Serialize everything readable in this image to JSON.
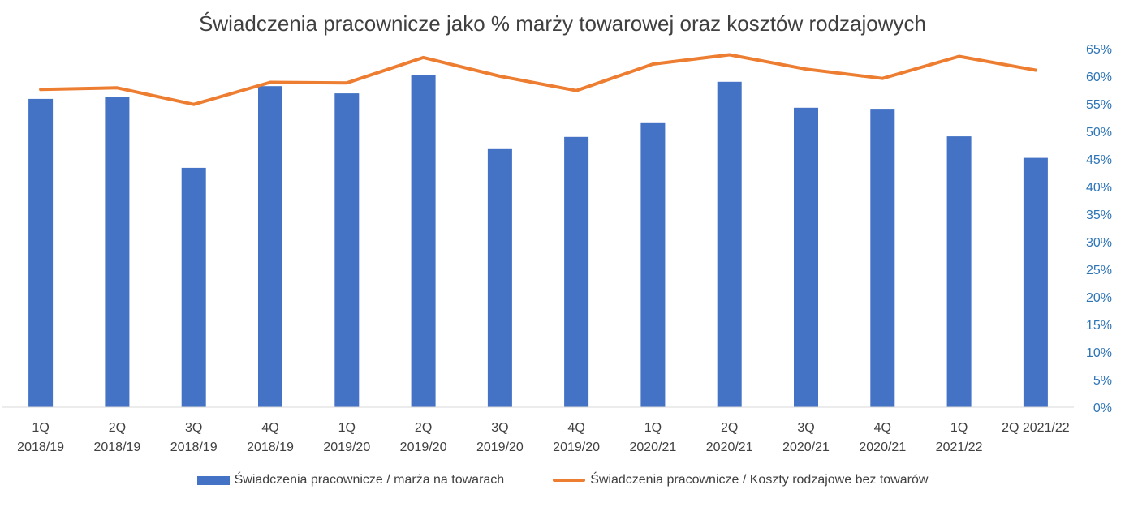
{
  "chart_data": {
    "type": "bar",
    "title": "Świadczenia pracownicze jako % marży towarowej oraz kosztów rodzajowych",
    "categories": [
      [
        "1Q",
        "2018/19"
      ],
      [
        "2Q",
        "2018/19"
      ],
      [
        "3Q",
        "2018/19"
      ],
      [
        "4Q",
        "2018/19"
      ],
      [
        "1Q",
        "2019/20"
      ],
      [
        "2Q",
        "2019/20"
      ],
      [
        "3Q",
        "2019/20"
      ],
      [
        "4Q",
        "2019/20"
      ],
      [
        "1Q",
        "2020/21"
      ],
      [
        "2Q",
        "2020/21"
      ],
      [
        "3Q",
        "2020/21"
      ],
      [
        "4Q",
        "2020/21"
      ],
      [
        "1Q",
        "2021/22"
      ],
      [
        "2Q 2021/22"
      ]
    ],
    "series": [
      {
        "name": "Świadczenia pracownicze / marża na towarach",
        "type": "bar",
        "color": "#4472c4",
        "values": [
          55.9,
          56.3,
          43.4,
          58.2,
          56.9,
          60.2,
          46.8,
          49.0,
          51.5,
          59.0,
          54.3,
          54.1,
          49.1,
          45.2
        ]
      },
      {
        "name": "Świadczenia pracownicze / Koszty rodzajowe bez towarów",
        "type": "line",
        "color": "#ed7d31",
        "values": [
          57.6,
          57.9,
          54.9,
          58.9,
          58.8,
          63.4,
          60.0,
          57.4,
          62.2,
          63.9,
          61.3,
          59.6,
          63.6,
          61.1
        ]
      }
    ],
    "yaxis": {
      "side": "right",
      "min": 0,
      "max": 65,
      "step": 5,
      "unit": "%"
    },
    "legend_position": "bottom",
    "grid": false
  }
}
